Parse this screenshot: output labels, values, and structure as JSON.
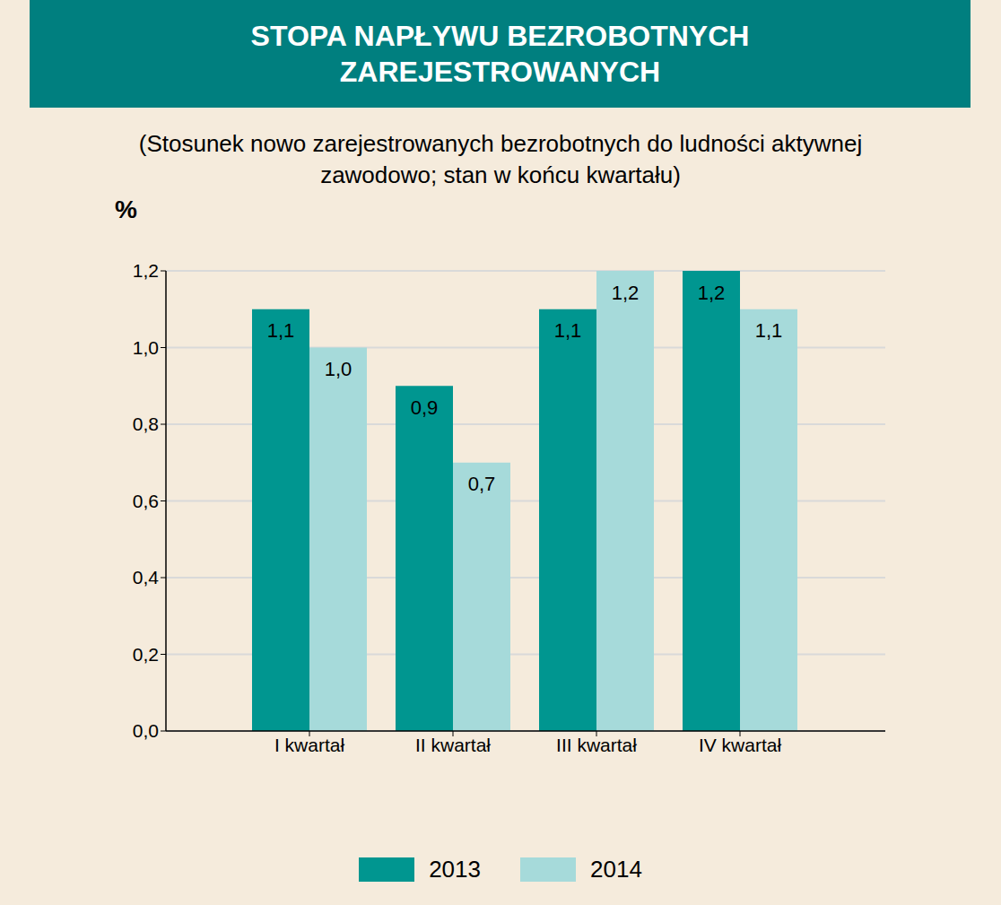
{
  "chart_data": {
    "type": "bar",
    "title": "STOPA NAPŁYWU BEZROBOTNYCH ZAREJESTROWANYCH",
    "subtitle": "(Stosunek nowo zarejestrowanych bezrobotnych do ludności aktywnej zawodowo; stan w końcu kwartału)",
    "y_label": "%",
    "categories": [
      "I kwartał",
      "II kwartał",
      "III kwartał",
      "IV kwartał"
    ],
    "series": [
      {
        "name": "2013",
        "color": "#009690",
        "values": [
          1.1,
          0.9,
          1.1,
          1.2
        ],
        "value_labels": [
          "1,1",
          "0,9",
          "1,1",
          "1,2"
        ]
      },
      {
        "name": "2014",
        "color": "#a6dada",
        "values": [
          1.0,
          0.7,
          1.2,
          1.1
        ],
        "value_labels": [
          "1,0",
          "0,7",
          "1,2",
          "1,1"
        ]
      }
    ],
    "ylim": [
      0,
      1.2
    ],
    "yticks": [
      {
        "value": 0,
        "label": "0,0"
      },
      {
        "value": 0.2,
        "label": "0,2"
      },
      {
        "value": 0.4,
        "label": "0,4"
      },
      {
        "value": 0.6,
        "label": "0,6"
      },
      {
        "value": 0.8,
        "label": "0,8"
      },
      {
        "value": 1.0,
        "label": "1,0"
      },
      {
        "value": 1.2,
        "label": "1,2"
      }
    ],
    "grid": true,
    "data_labels": true,
    "legend": "bottom"
  }
}
